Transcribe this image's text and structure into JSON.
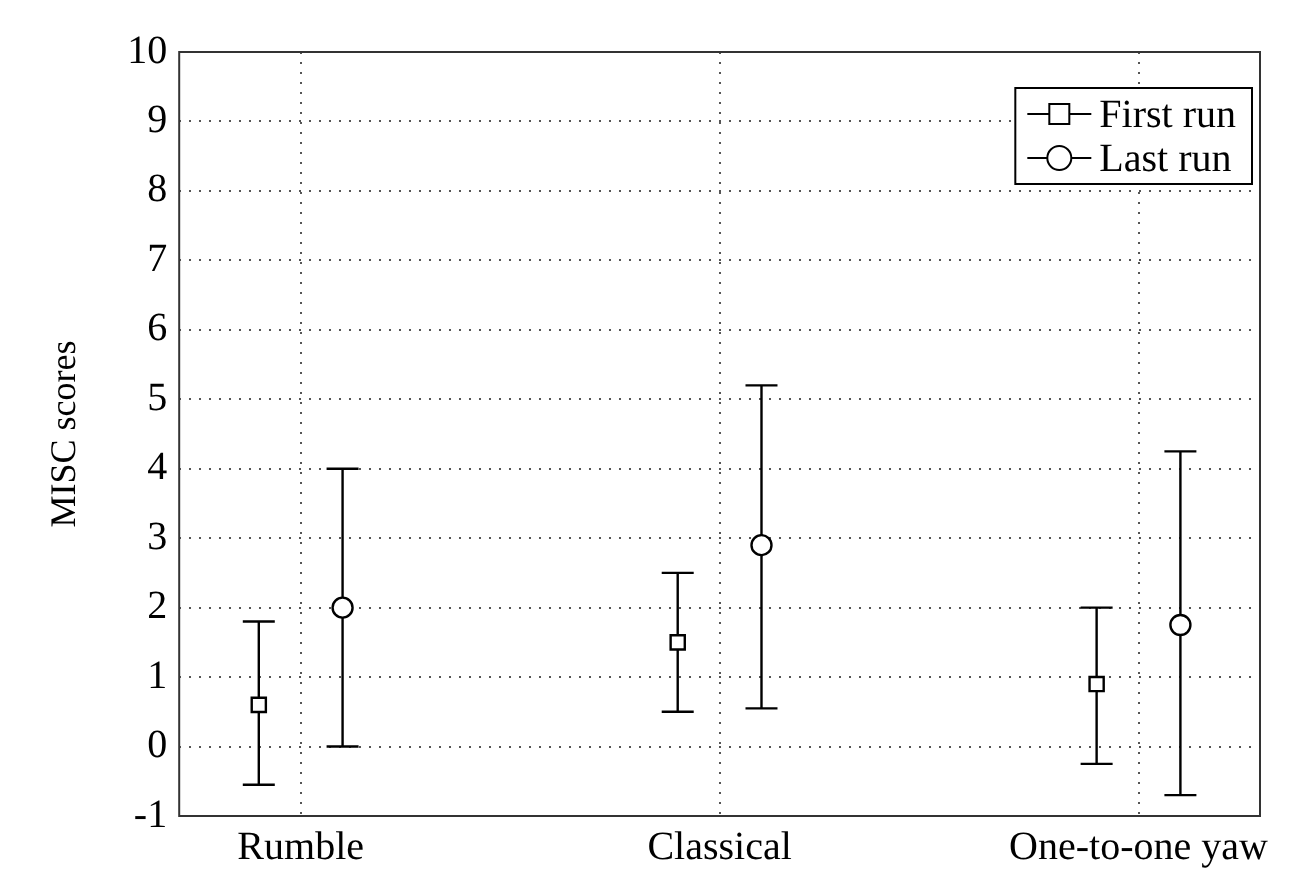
{
  "chart_data": {
    "type": "scatter",
    "ylabel": "MISC scores",
    "categories": [
      "Rumble",
      "Classical",
      "One-to-one yaw"
    ],
    "ylim": [
      -1,
      10
    ],
    "yticks": [
      -1,
      0,
      1,
      2,
      3,
      4,
      5,
      6,
      7,
      8,
      9,
      10
    ],
    "grid": true,
    "legend": "top right",
    "series": [
      {
        "name": "First run",
        "color": "#000000",
        "marker": "square",
        "values": [
          0.6,
          1.5,
          0.9
        ],
        "errors": [
          [
            -0.55,
            1.8
          ],
          [
            0.5,
            2.5
          ],
          [
            -0.25,
            2.0
          ]
        ]
      },
      {
        "name": "Last run",
        "color": "#000000",
        "marker": "circle",
        "values": [
          2.0,
          2.9,
          1.75
        ],
        "errors": [
          [
            0.0,
            4.0
          ],
          [
            0.55,
            5.2
          ],
          [
            -0.7,
            4.25
          ]
        ]
      }
    ]
  }
}
